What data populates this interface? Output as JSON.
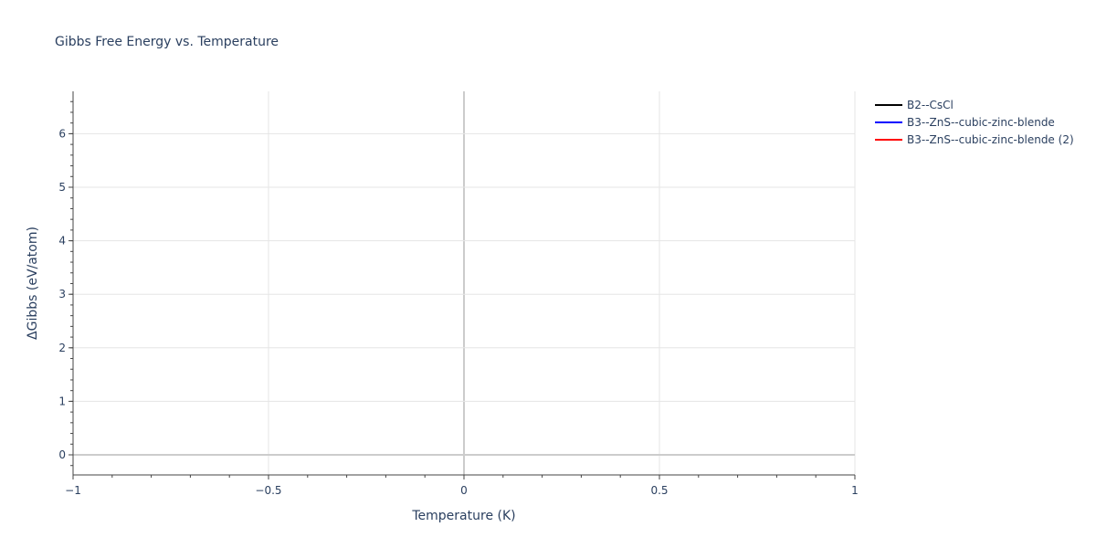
{
  "chart_data": {
    "type": "line",
    "title": "Gibbs Free Energy vs. Temperature",
    "xlabel": "Temperature (K)",
    "ylabel": "ΔGibbs (eV/atom)",
    "xlim": [
      -1,
      1
    ],
    "ylim": [
      -0.37,
      6.8
    ],
    "xticks": [
      -1,
      -0.5,
      0,
      0.5,
      1
    ],
    "xtick_labels": [
      "−1",
      "−0.5",
      "0",
      "0.5",
      "1"
    ],
    "yticks": [
      0,
      1,
      2,
      3,
      4,
      5,
      6
    ],
    "ytick_labels": [
      "0",
      "1",
      "2",
      "3",
      "4",
      "5",
      "6"
    ],
    "grid": true,
    "legend_placement": "top-right outside",
    "series": [
      {
        "name": "B2--CsCl",
        "color": "#000000",
        "x": [],
        "y": []
      },
      {
        "name": "B3--ZnS--cubic-zinc-blende",
        "color": "#0000ff",
        "x": [],
        "y": []
      },
      {
        "name": "B3--ZnS--cubic-zinc-blende (2)",
        "color": "#ff0000",
        "x": [],
        "y": []
      }
    ]
  }
}
